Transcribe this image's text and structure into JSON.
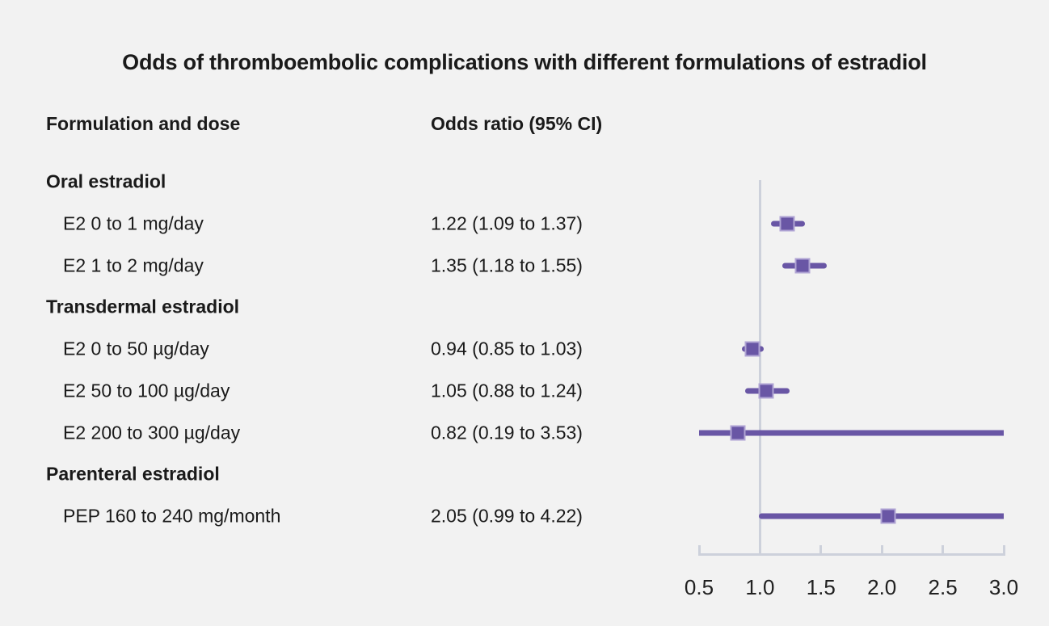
{
  "chart_data": {
    "type": "forest",
    "title": "Odds of thromboembolic complications with different formulations of estradiol",
    "col_headers": [
      "Formulation and dose",
      "Odds ratio (95% CI)"
    ],
    "axis": {
      "min": 0.5,
      "max": 3.0,
      "ref_line": 1.0,
      "ticks": [
        0.5,
        1.0,
        1.5,
        2.0,
        2.5,
        3.0
      ],
      "tick_labels": [
        "0.5",
        "1.0",
        "1.5",
        "2.0",
        "2.5",
        "3.0"
      ]
    },
    "rows": [
      {
        "label": "Oral estradiol",
        "group": true
      },
      {
        "label": "E2 0 to 1 mg/day",
        "or_text": "1.22 (1.09 to 1.37)",
        "or": 1.22,
        "lo": 1.09,
        "hi": 1.37
      },
      {
        "label": "E2 1 to 2 mg/day",
        "or_text": "1.35 (1.18 to 1.55)",
        "or": 1.35,
        "lo": 1.18,
        "hi": 1.55
      },
      {
        "label": "Transdermal estradiol",
        "group": true
      },
      {
        "label": "E2 0 to 50 µg/day",
        "or_text": "0.94 (0.85 to 1.03)",
        "or": 0.94,
        "lo": 0.85,
        "hi": 1.03
      },
      {
        "label": "E2 50 to 100 µg/day",
        "or_text": "1.05 (0.88 to 1.24)",
        "or": 1.05,
        "lo": 0.88,
        "hi": 1.24
      },
      {
        "label": "E2 200 to 300 µg/day",
        "or_text": "0.82 (0.19 to 3.53)",
        "or": 0.82,
        "lo": 0.19,
        "hi": 3.53
      },
      {
        "label": "Parenteral estradiol",
        "group": true
      },
      {
        "label": "PEP 160 to 240 mg/month",
        "or_text": "2.05 (0.99 to 4.22)",
        "or": 2.05,
        "lo": 0.99,
        "hi": 4.22
      }
    ],
    "colors": {
      "marker": "#6956a5",
      "marker_border": "#b0a4d4",
      "ref_line": "#cdd1db",
      "axis": "#cdd1db",
      "background": "#f2f2f2",
      "text": "#1a1a1a"
    }
  }
}
